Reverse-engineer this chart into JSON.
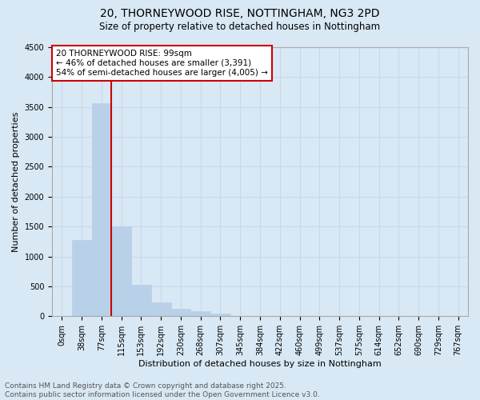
{
  "title_line1": "20, THORNEYWOOD RISE, NOTTINGHAM, NG3 2PD",
  "title_line2": "Size of property relative to detached houses in Nottingham",
  "xlabel": "Distribution of detached houses by size in Nottingham",
  "ylabel": "Number of detached properties",
  "bar_values": [
    5,
    1280,
    3560,
    1500,
    530,
    230,
    130,
    80,
    40,
    5,
    0,
    0,
    0,
    0,
    0,
    0,
    0,
    0,
    0,
    0,
    0
  ],
  "categories": [
    "0sqm",
    "38sqm",
    "77sqm",
    "115sqm",
    "153sqm",
    "192sqm",
    "230sqm",
    "268sqm",
    "307sqm",
    "345sqm",
    "384sqm",
    "422sqm",
    "460sqm",
    "499sqm",
    "537sqm",
    "575sqm",
    "614sqm",
    "652sqm",
    "690sqm",
    "729sqm",
    "767sqm"
  ],
  "bar_color": "#b8d0e8",
  "bar_edgecolor": "#b8d0e8",
  "grid_color": "#c8d8ec",
  "background_color": "#d8e8f4",
  "property_line_color": "#cc0000",
  "annotation_text": "20 THORNEYWOOD RISE: 99sqm\n← 46% of detached houses are smaller (3,391)\n54% of semi-detached houses are larger (4,005) →",
  "annotation_box_facecolor": "#ffffff",
  "annotation_box_edgecolor": "#cc0000",
  "ylim": [
    0,
    4500
  ],
  "yticks": [
    0,
    500,
    1000,
    1500,
    2000,
    2500,
    3000,
    3500,
    4000,
    4500
  ],
  "footer_text": "Contains HM Land Registry data © Crown copyright and database right 2025.\nContains public sector information licensed under the Open Government Licence v3.0.",
  "title_fontsize": 10,
  "subtitle_fontsize": 8.5,
  "annotation_fontsize": 7.5,
  "tick_fontsize": 7,
  "ylabel_fontsize": 8,
  "xlabel_fontsize": 8,
  "footer_fontsize": 6.5
}
